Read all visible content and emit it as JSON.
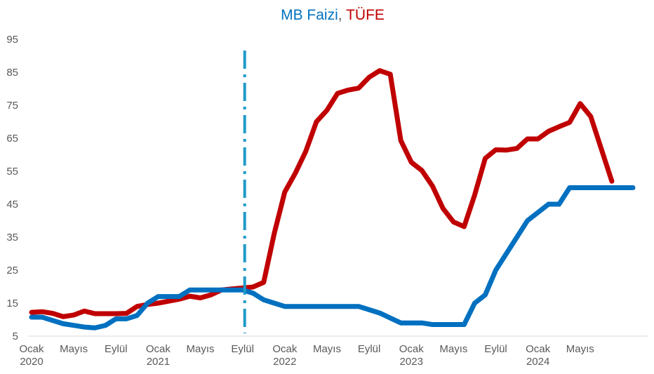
{
  "chart_data": {
    "type": "line",
    "title_parts": [
      {
        "text": "MB Faizi",
        "color": "#0070C0"
      },
      {
        "text": ", ",
        "color": "#595959"
      },
      {
        "text": "TÜFE",
        "color": "#C00000"
      }
    ],
    "ylim": [
      5,
      95
    ],
    "yticks": [
      5,
      15,
      25,
      35,
      45,
      55,
      65,
      75,
      85,
      95
    ],
    "xlim": [
      0,
      58
    ],
    "xticks": [
      {
        "x": 0,
        "line1": "Ocak",
        "line2": "2020"
      },
      {
        "x": 4,
        "line1": "Mayıs",
        "line2": ""
      },
      {
        "x": 8,
        "line1": "Eylül",
        "line2": ""
      },
      {
        "x": 12,
        "line1": "Ocak",
        "line2": "2021"
      },
      {
        "x": 16,
        "line1": "Mayıs",
        "line2": ""
      },
      {
        "x": 20,
        "line1": "Eylül",
        "line2": ""
      },
      {
        "x": 24,
        "line1": "Ocak",
        "line2": "2022"
      },
      {
        "x": 28,
        "line1": "Mayıs",
        "line2": ""
      },
      {
        "x": 32,
        "line1": "Eylül",
        "line2": ""
      },
      {
        "x": 36,
        "line1": "Ocak",
        "line2": "2023"
      },
      {
        "x": 40,
        "line1": "Mayıs",
        "line2": ""
      },
      {
        "x": 44,
        "line1": "Eylül",
        "line2": ""
      },
      {
        "x": 48,
        "line1": "Ocak",
        "line2": "2024"
      },
      {
        "x": 52,
        "line1": "Mayıs",
        "line2": ""
      }
    ],
    "vline": {
      "x": 20.2,
      "color": "#1F9BC8"
    },
    "series": [
      {
        "name": "TÜFE",
        "color": "#C00000",
        "values": [
          12.2,
          12.4,
          11.9,
          10.9,
          11.4,
          12.6,
          11.8,
          11.8,
          11.8,
          11.9,
          14.0,
          14.6,
          15.0,
          15.6,
          16.2,
          17.1,
          16.6,
          17.5,
          19.0,
          19.3,
          19.6,
          19.9,
          21.3,
          36.1,
          48.7,
          54.4,
          61.1,
          70.0,
          73.5,
          78.6,
          79.6,
          80.2,
          83.5,
          85.5,
          84.4,
          64.3,
          57.7,
          55.2,
          50.5,
          43.7,
          39.6,
          38.2,
          47.8,
          58.9,
          61.5,
          61.4,
          61.9,
          64.8,
          64.8,
          67.1,
          68.5,
          69.8,
          75.5,
          71.6,
          61.8,
          51.97
        ]
      },
      {
        "name": "MB Faizi",
        "color": "#0070C0",
        "values": [
          10.75,
          10.75,
          9.75,
          8.75,
          8.25,
          7.75,
          7.5,
          8.25,
          10.25,
          10.25,
          11.25,
          15.0,
          17.0,
          17.0,
          17.0,
          19.0,
          19.0,
          19.0,
          19.0,
          19.0,
          19.0,
          18.0,
          16.0,
          15.0,
          14.0,
          14.0,
          14.0,
          14.0,
          14.0,
          14.0,
          14.0,
          14.0,
          13.0,
          12.0,
          10.5,
          9.0,
          9.0,
          9.0,
          8.5,
          8.5,
          8.5,
          8.5,
          15.0,
          17.5,
          25.0,
          30.0,
          35.0,
          40.0,
          42.5,
          45.0,
          45.0,
          50.0,
          50.0,
          50.0,
          50.0,
          50.0,
          50.0,
          50.0
        ]
      }
    ]
  }
}
